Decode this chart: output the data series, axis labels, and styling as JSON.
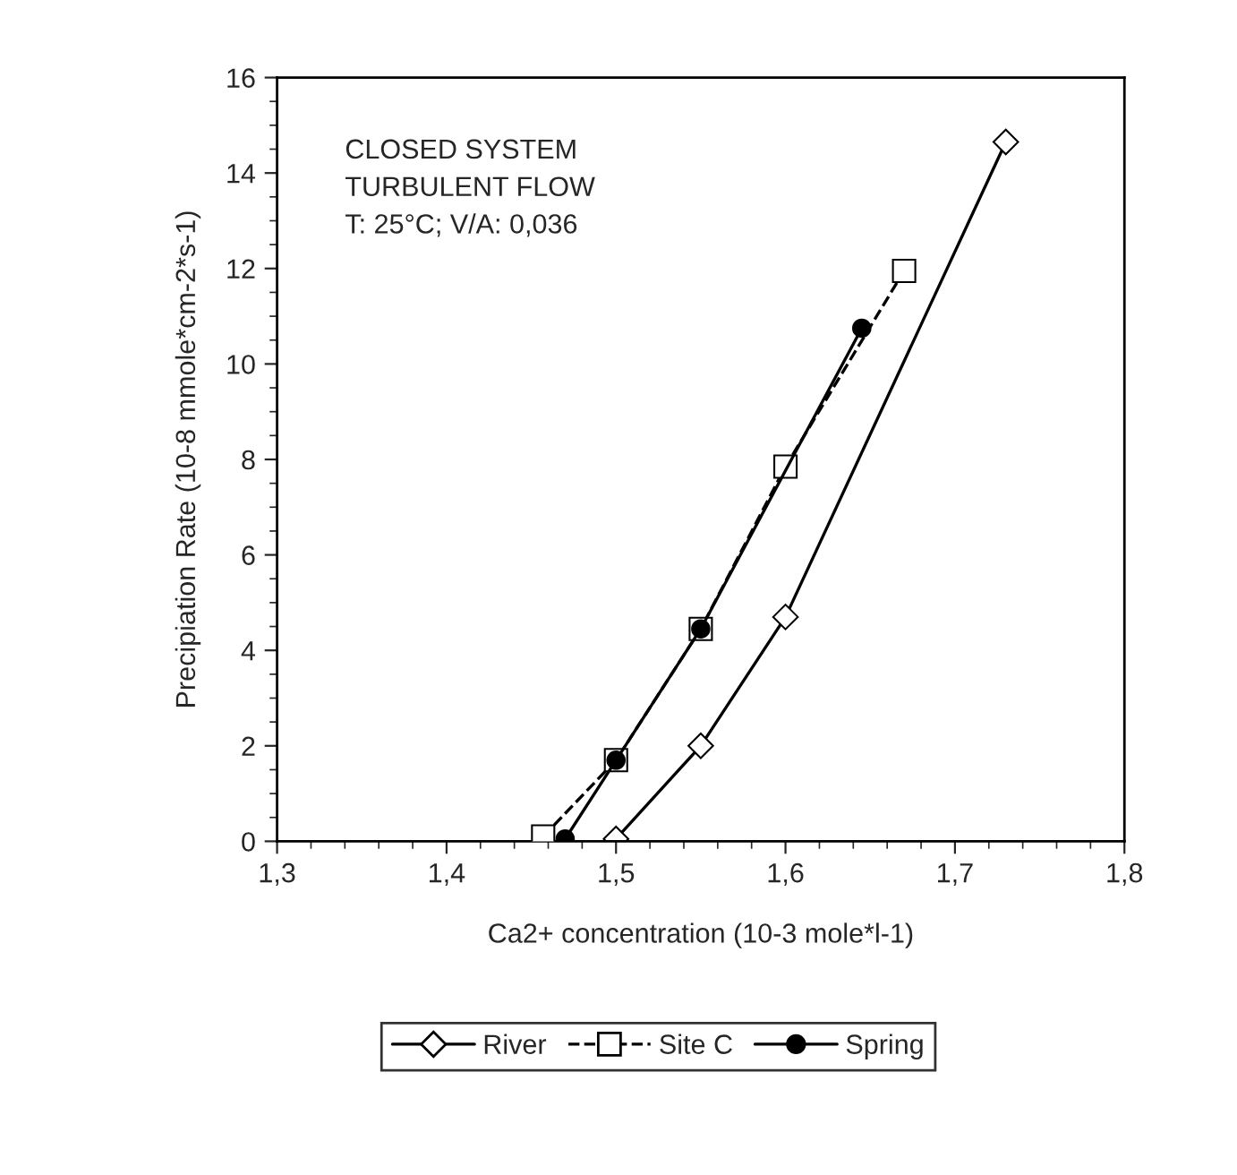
{
  "chart_data": {
    "type": "line",
    "xlabel": "Ca2+ concentration (10-3 mole*l-1)",
    "ylabel": "Precipiation Rate (10-8 mmole*cm-2*s-1)",
    "annotations": [
      "CLOSED SYSTEM\nTURBULENT FLOW\nT: 25°C; V/A: 0,036"
    ],
    "series": [
      {
        "name": "River",
        "color": "#000000",
        "marker": "diamond",
        "line_style": "solid",
        "x": [
          1.5,
          1.55,
          1.6,
          1.73
        ],
        "values": [
          0.05,
          2.0,
          4.7,
          14.65
        ]
      },
      {
        "name": "Site C",
        "color": "#000000",
        "marker": "square",
        "line_style": "dashed",
        "x": [
          1.457,
          1.5,
          1.55,
          1.6,
          1.67
        ],
        "values": [
          0.1,
          1.7,
          4.45,
          7.85,
          11.95
        ]
      },
      {
        "name": "Spring",
        "color": "#000000",
        "marker": "circle",
        "line_style": "solid",
        "x": [
          1.47,
          1.5,
          1.55,
          1.645
        ],
        "values": [
          0.05,
          1.7,
          4.45,
          10.75
        ]
      }
    ],
    "xlim": [
      1.3,
      1.8
    ],
    "xticks": [
      {
        "value": 1.3,
        "label": "1,3"
      },
      {
        "value": 1.4,
        "label": "1,4"
      },
      {
        "value": 1.5,
        "label": "1,5"
      },
      {
        "value": 1.6,
        "label": "1,6"
      },
      {
        "value": 1.7,
        "label": "1,7"
      },
      {
        "value": 1.8,
        "label": "1,8"
      }
    ],
    "ylim": [
      0,
      16
    ],
    "yticks": [
      0,
      2,
      4,
      6,
      8,
      10,
      12,
      14,
      16
    ],
    "grid": false,
    "legend": "bottom"
  }
}
